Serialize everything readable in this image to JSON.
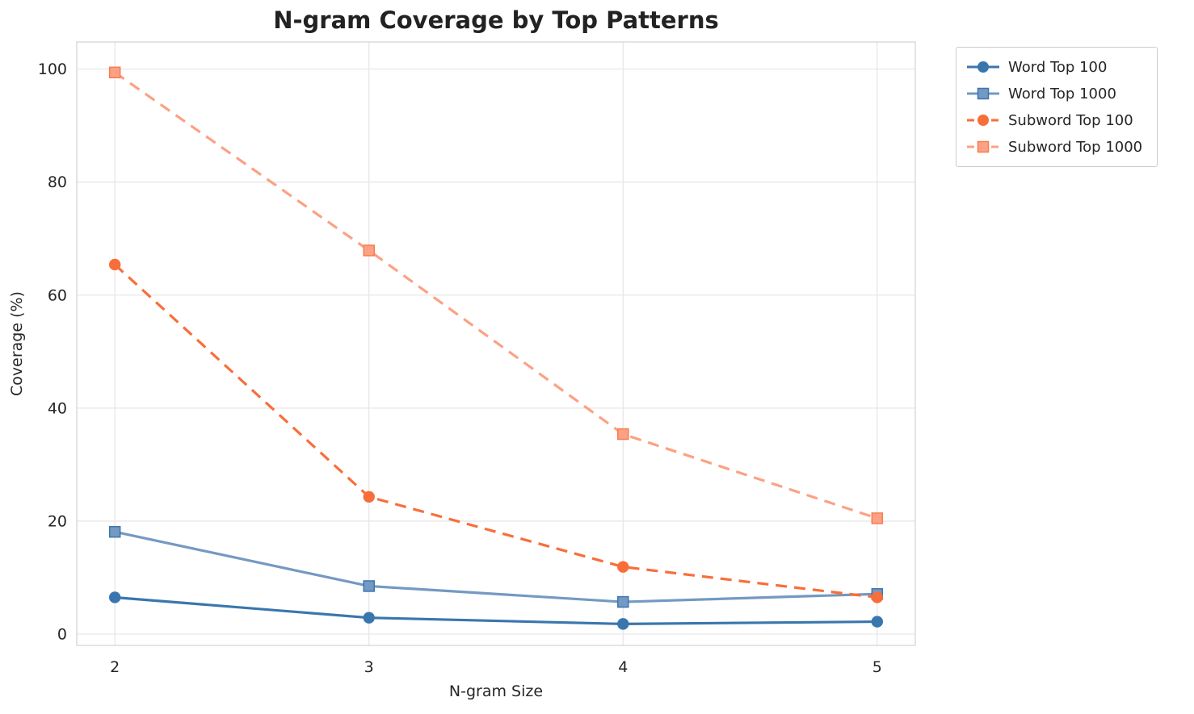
{
  "title": "N-gram Coverage by Top Patterns",
  "colors": {
    "background": "#ffffff",
    "grid": "#e7e7e7",
    "plot_border": "#d5d5d5",
    "text": "#262626"
  },
  "chart_data": {
    "type": "line",
    "title": "N-gram Coverage by Top Patterns",
    "xlabel": "N-gram Size",
    "ylabel": "Coverage (%)",
    "x": [
      2,
      3,
      4,
      5
    ],
    "x_ticks": [
      2,
      3,
      4,
      5
    ],
    "y_ticks": [
      0,
      20,
      40,
      60,
      80,
      100
    ],
    "xlim": [
      1.85,
      5.15
    ],
    "ylim": [
      -2,
      104.8
    ],
    "grid": true,
    "legend_position": "upper right, outside plot",
    "series": [
      {
        "name": "Word Top 100",
        "values": [
          6.5,
          2.9,
          1.8,
          2.2
        ],
        "color": "#3a76ae",
        "edge_color": "#3a76ae",
        "marker": "circle",
        "line_style": "solid"
      },
      {
        "name": "Word Top 1000",
        "values": [
          18.1,
          8.5,
          5.7,
          7.1
        ],
        "color": "#7499c2",
        "edge_color": "#3b76af",
        "marker": "square",
        "line_style": "solid"
      },
      {
        "name": "Subword Top 100",
        "values": [
          65.4,
          24.3,
          11.9,
          6.5
        ],
        "color": "#f86e3a",
        "edge_color": "#f86e3a",
        "marker": "circle",
        "line_style": "dashed"
      },
      {
        "name": "Subword Top 1000",
        "values": [
          99.4,
          67.9,
          35.4,
          20.5
        ],
        "color": "#fca183",
        "edge_color": "#f97b50",
        "marker": "square",
        "line_style": "dashed"
      }
    ]
  }
}
